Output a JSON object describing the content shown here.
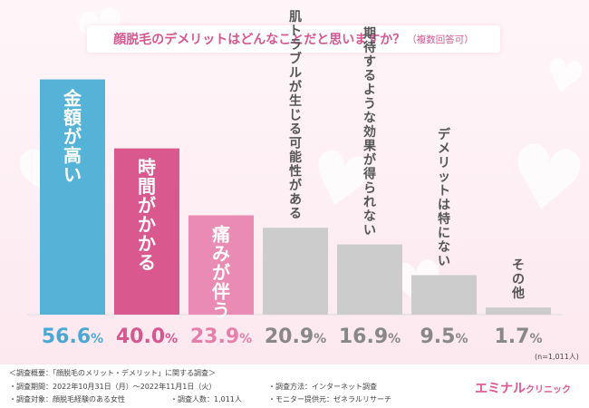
{
  "title": {
    "main": "顔脱毛のデメリットはどんなことだと思いますか？",
    "sub": "（複数回答可）"
  },
  "chart_data": {
    "type": "bar",
    "title": "顔脱毛のデメリットはどんなことだと思いますか？（複数回答可）",
    "categories": [
      "金額が高い",
      "時間がかかる",
      "痛みが伴う",
      "肌トラブルが生じる可能性がある",
      "期待するような効果が得られない",
      "デメリットは特にない",
      "その他"
    ],
    "values": [
      56.6,
      40.0,
      23.9,
      20.9,
      16.9,
      9.5,
      1.7
    ],
    "value_labels": [
      "56.6",
      "40.0",
      "23.9",
      "20.9",
      "16.9",
      "9.5",
      "1.7"
    ],
    "unit": "%",
    "colors": [
      "#55b3d8",
      "#d9598f",
      "#e98bb3",
      "#cccccc",
      "#cccccc",
      "#cccccc",
      "#cccccc"
    ],
    "label_colors": [
      "#4aa8d2",
      "#d5578f",
      "#e77fab",
      "#888888",
      "#888888",
      "#888888",
      "#888888"
    ],
    "ylim": [
      0,
      60
    ],
    "xlabel": "",
    "ylabel": "",
    "grid": false,
    "legend": "none",
    "note": "(n=1,011人)"
  },
  "survey": {
    "overview": "＜調査概要：「顔脱毛のメリット・デメリット」に関する調査＞",
    "period": "・調査期間：2022年10月31日（月）〜2022年11月1日（火）",
    "target": "・調査対象：顔脱毛経験のある女性",
    "count": "・調査人数：1,011人",
    "method": "・調査方法：インターネット調査",
    "provider": "・モニター提供元：ゼネラルリサーチ"
  },
  "brand": {
    "name": "エミナル",
    "suffix": "クリニック"
  }
}
